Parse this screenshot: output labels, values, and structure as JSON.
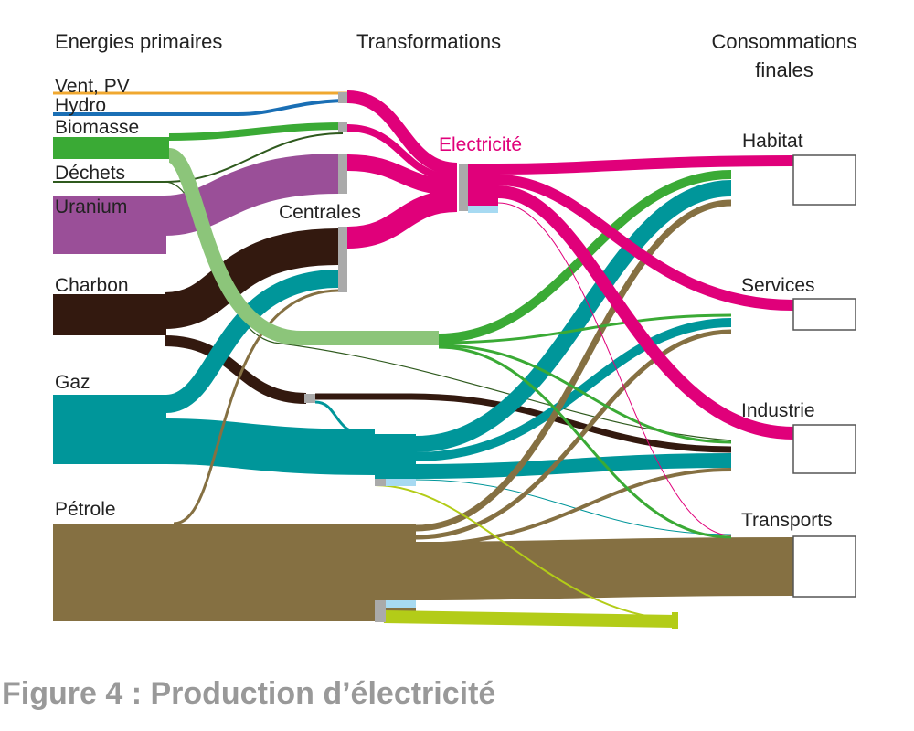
{
  "headers": {
    "primary": "Energies primaires",
    "transformations": "Transformations",
    "final_line1": "Consommations",
    "final_line2": "finales"
  },
  "sources": {
    "vent": "Vent, PV",
    "hydro": "Hydro",
    "biomasse": "Biomasse",
    "dechets": "Déchets",
    "uranium": "Uranium",
    "charbon": "Charbon",
    "gaz": "Gaz",
    "petrole": "Pétrole"
  },
  "transform_nodes": {
    "electricite": "Electricité",
    "centrales": "Centrales"
  },
  "sinks": {
    "habitat": "Habitat",
    "services": "Services",
    "industrie": "Industrie",
    "transports": "Transports"
  },
  "caption": "Figure 4 : Production d’électricité",
  "colors": {
    "vent": "#f0a830",
    "hydro": "#1a6fb5",
    "biomasse": "#3aaa35",
    "biomasse_light": "#8cc57a",
    "dechets": "#2f5a1e",
    "uranium": "#9a4f98",
    "charbon": "#33190f",
    "gaz": "#00969a",
    "petrole": "#857042",
    "electricite": "#e0007a",
    "transport_green": "#b3cc18",
    "losses": "#a7daf2",
    "node_grey": "#aaaaaa"
  }
}
